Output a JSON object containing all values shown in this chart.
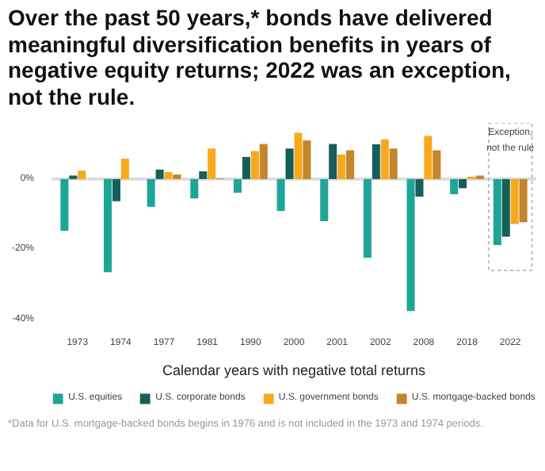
{
  "chart_data": {
    "type": "bar",
    "title": "Over the past 50 years,* bonds have delivered meaningful diversification benefits in years of negative equity returns; 2022 was an exception, not the rule.",
    "xlabel": "Calendar years with negative total returns",
    "categories": [
      "1973",
      "1974",
      "1977",
      "1981",
      "1990",
      "2000",
      "2001",
      "2002",
      "2008",
      "2018",
      "2022"
    ],
    "series": [
      {
        "name": "U.S. equities",
        "color": "#1fa597",
        "values": [
          -14.7,
          -26.5,
          -7.9,
          -5.5,
          -3.9,
          -9.1,
          -12,
          -22.4,
          -37.6,
          -4.3,
          -18.8
        ]
      },
      {
        "name": "U.S. corporate bonds",
        "color": "#155e59",
        "values": [
          1,
          -6.3,
          2.7,
          2.2,
          6.3,
          8.7,
          10,
          9.9,
          -5,
          -2.6,
          -16.4
        ]
      },
      {
        "name": "U.S. government bonds",
        "color": "#f7a91d",
        "values": [
          2.4,
          5.8,
          2,
          8.7,
          8,
          13.2,
          7,
          11.3,
          12.3,
          0.7,
          -12.8
        ]
      },
      {
        "name": "U.S. mortgage-backed bonds",
        "color": "#c4852b",
        "values": [
          null,
          null,
          1.3,
          0.2,
          10,
          11,
          8.2,
          8.7,
          8.2,
          1,
          -12.3
        ]
      }
    ],
    "ylim": [
      -40,
      16
    ],
    "yticks": [
      {
        "value": -40,
        "label": "-40%"
      },
      {
        "value": -20,
        "label": "-20%"
      },
      {
        "value": 0,
        "label": "0%"
      }
    ],
    "ref_lines": [
      {
        "axis": "y",
        "value": 0,
        "color": "#dddddd"
      }
    ],
    "grid": false,
    "legend": "bottom",
    "annotations": [
      "Exception,\nnot the rule",
      "*Data for U.S. mortgage-backed bonds begins in 1976 and is not included in the 1973 and 1974 periods."
    ]
  }
}
